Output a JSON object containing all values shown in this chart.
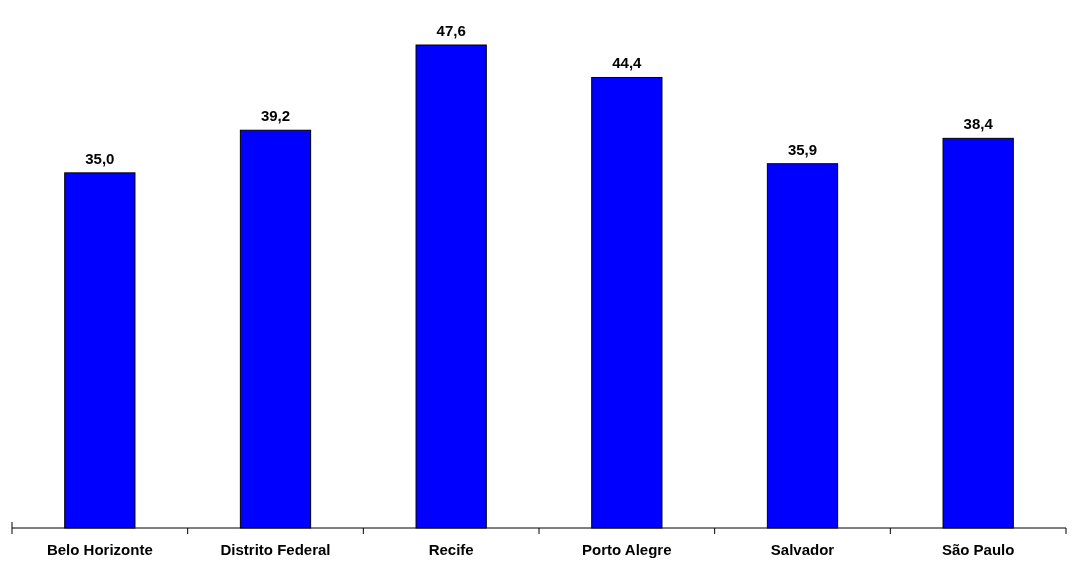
{
  "chart_data": {
    "type": "bar",
    "categories": [
      "Belo Horizonte",
      "Distrito Federal",
      "Recife",
      "Porto Alegre",
      "Salvador",
      "São Paulo"
    ],
    "values": [
      35.0,
      39.2,
      47.6,
      44.4,
      35.9,
      38.4
    ],
    "value_labels": [
      "35,0",
      "39,2",
      "47,6",
      "44,4",
      "35,9",
      "38,4"
    ],
    "color": "#0000ff"
  }
}
